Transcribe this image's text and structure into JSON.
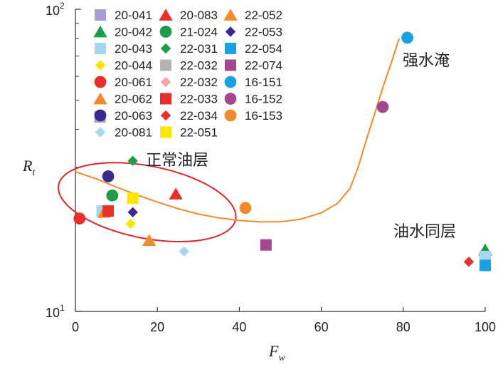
{
  "chart_data": {
    "type": "scatter",
    "xlabel": "F",
    "xlabel_sub": "w",
    "ylabel": "R",
    "ylabel_sub": "t",
    "xlim": [
      0,
      100
    ],
    "ylim": [
      10,
      100
    ],
    "yscale": "log",
    "x_ticks": [
      "0",
      "20",
      "40",
      "60",
      "80",
      "100"
    ],
    "y_tick_top": {
      "base": "10",
      "exp": "2"
    },
    "y_tick_bottom": {
      "base": "10",
      "exp": "1"
    },
    "annotations": [
      {
        "id": "water",
        "text": "强水淹"
      },
      {
        "id": "oil",
        "text": "正常油层"
      },
      {
        "id": "same",
        "text": "油水同层"
      }
    ],
    "series": [
      {
        "name": "20-041",
        "marker": "square",
        "color": "#a99ccf",
        "points": [
          [
            6,
            44
          ]
        ]
      },
      {
        "name": "20-042",
        "marker": "triangle",
        "color": "#1e9d48",
        "points": [
          [
            100,
            16
          ]
        ]
      },
      {
        "name": "20-043",
        "marker": "square",
        "color": "#a6d6f1",
        "points": [
          [
            6.5,
            21.5
          ],
          [
            100,
            15.2
          ]
        ]
      },
      {
        "name": "20-044",
        "marker": "diamond",
        "color": "#ffe500",
        "points": [
          [
            13.5,
            19.5
          ]
        ]
      },
      {
        "name": "20-061",
        "marker": "circle",
        "color": "#e8302b",
        "points": [
          [
            1,
            20.3
          ]
        ]
      },
      {
        "name": "20-062",
        "marker": "triangle",
        "color": "#f08a2c",
        "points": [
          [
            7,
            21.3
          ],
          [
            18,
            17.2
          ]
        ]
      },
      {
        "name": "20-063",
        "marker": "circle",
        "color": "#3b2a8c",
        "points": [
          [
            8,
            28
          ]
        ]
      },
      {
        "name": "20-081",
        "marker": "diamond",
        "color": "#a6d6f1",
        "points": [
          [
            26.5,
            15.8
          ]
        ]
      },
      {
        "name": "20-083",
        "marker": "triangle",
        "color": "#e8302b",
        "points": [
          [
            24.5,
            24.5
          ]
        ]
      },
      {
        "name": "21-024",
        "marker": "circle",
        "color": "#1e9d48",
        "points": [
          [
            9,
            24.2
          ]
        ]
      },
      {
        "name": "22-031",
        "marker": "diamond",
        "color": "#1e9d48",
        "points": [
          [
            14,
            31.5
          ]
        ]
      },
      {
        "name": "22-032",
        "marker": "square",
        "color": "#b3b3b3",
        "points": []
      },
      {
        "name": "22-032",
        "marker": "diamond",
        "color": "#f4a3a8",
        "points": []
      },
      {
        "name": "22-033",
        "marker": "square",
        "color": "#e8302b",
        "points": [
          [
            8,
            21.5
          ]
        ]
      },
      {
        "name": "22-034",
        "marker": "diamond",
        "color": "#e8302b",
        "points": [
          [
            96,
            14.6
          ]
        ]
      },
      {
        "name": "22-051",
        "marker": "square",
        "color": "#ffe500",
        "points": [
          [
            14,
            23.7
          ]
        ]
      },
      {
        "name": "22-052",
        "marker": "triangle",
        "color": "#f08a2c",
        "points": []
      },
      {
        "name": "22-053",
        "marker": "diamond",
        "color": "#3b2a8c",
        "points": [
          [
            14,
            21.3
          ]
        ]
      },
      {
        "name": "22-054",
        "marker": "square",
        "color": "#1ba1e2",
        "points": [
          [
            100,
            14.2
          ]
        ]
      },
      {
        "name": "22-074",
        "marker": "square",
        "color": "#a3488f",
        "points": [
          [
            46.5,
            16.6
          ]
        ]
      },
      {
        "name": "16-151",
        "marker": "circle",
        "color": "#1ba1e2",
        "points": [
          [
            81,
            80.5
          ]
        ]
      },
      {
        "name": "16-152",
        "marker": "circle",
        "color": "#a3488f",
        "points": [
          [
            75,
            47.5
          ]
        ]
      },
      {
        "name": "16-153",
        "marker": "circle",
        "color": "#f08a2c",
        "points": [
          [
            41.5,
            22
          ]
        ]
      }
    ],
    "fit_curve": {
      "color": "#f08a2c",
      "points": [
        [
          0,
          29
        ],
        [
          5,
          27.5
        ],
        [
          10,
          25.8
        ],
        [
          15,
          24.3
        ],
        [
          20,
          23
        ],
        [
          25,
          21.9
        ],
        [
          30,
          21
        ],
        [
          35,
          20.4
        ],
        [
          40,
          20
        ],
        [
          45,
          19.8
        ],
        [
          50,
          19.8
        ],
        [
          55,
          20.2
        ],
        [
          60,
          21.2
        ],
        [
          64,
          22.8
        ],
        [
          67,
          25.5
        ],
        [
          69,
          30
        ],
        [
          71,
          37
        ],
        [
          73,
          45
        ],
        [
          75,
          55
        ],
        [
          77,
          66
        ],
        [
          79,
          80
        ]
      ]
    },
    "ellipse": {
      "color": "#d7282d",
      "cx": 17.5,
      "cy": 23,
      "rx_units": 22,
      "ry_high": 30.2,
      "ry_low": 17.4,
      "rotate_deg": 11
    }
  },
  "legend_columns": 3
}
